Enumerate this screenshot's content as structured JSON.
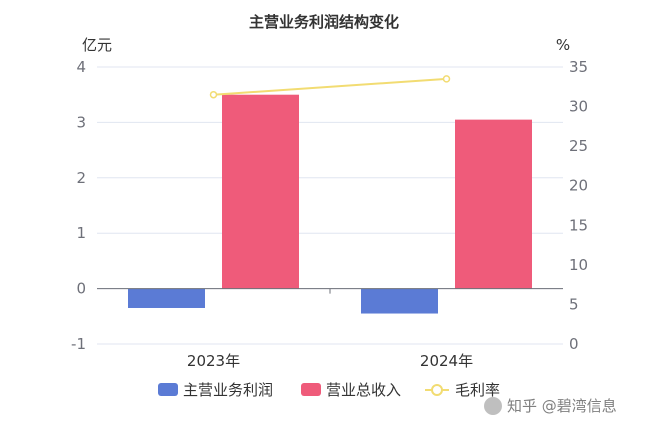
{
  "chart_data": {
    "type": "bar",
    "title": "主营业务利润结构变化",
    "categories": [
      "2023年",
      "2024年"
    ],
    "series": [
      {
        "name": "主营业务利润",
        "type": "bar",
        "axis": "left",
        "color": "#5b7bd5",
        "values": [
          -0.35,
          -0.45
        ]
      },
      {
        "name": "营业总收入",
        "type": "bar",
        "axis": "left",
        "color": "#ef5b7a",
        "values": [
          3.5,
          3.05
        ]
      },
      {
        "name": "毛利率",
        "type": "line",
        "axis": "right",
        "color": "#f2dc72",
        "values": [
          31.5,
          33.5
        ]
      }
    ],
    "y_left": {
      "unit": "亿元",
      "ylim": [
        -1,
        4
      ],
      "ticks": [
        "4",
        "3",
        "2",
        "1",
        "0",
        "-1"
      ]
    },
    "y_right": {
      "unit": "%",
      "ylim": [
        0,
        35
      ],
      "ticks": [
        "35",
        "30",
        "25",
        "20",
        "15",
        "10",
        "5",
        "0"
      ]
    },
    "grid": true,
    "legend_position": "bottom"
  },
  "watermark": "知乎 @碧湾信息"
}
